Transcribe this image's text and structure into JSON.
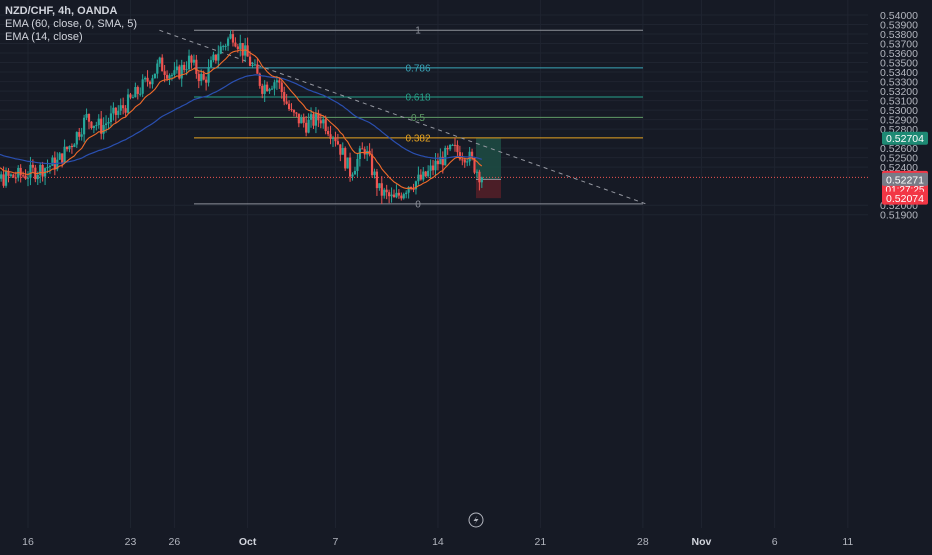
{
  "legend": {
    "symbol": "NZD/CHF, 4h, OANDA",
    "ema_long": "EMA (60, close, 0, SMA, 5)",
    "ema_short": "EMA (14, close)"
  },
  "colors": {
    "background": "#161a25",
    "up": "#26a69a",
    "down": "#ef5350",
    "ema_long": "#2a4fb0",
    "ema_short": "#f06a2a",
    "fib_1": "#8d919a",
    "fib_786": "#3aa6b9",
    "fib_618": "#27a38a",
    "fib_5": "#5f9a66",
    "fib_382": "#e6a321",
    "fib_0": "#8d919a",
    "price_line": "#ef5350",
    "target_zone": "#1d4a42",
    "stop_zone": "#4e1f27"
  },
  "price_axis": {
    "ticks": [
      "0.54000",
      "0.53900",
      "0.53800",
      "0.53700",
      "0.53600",
      "0.53500",
      "0.53400",
      "0.53300",
      "0.53200",
      "0.53100",
      "0.53000",
      "0.52900",
      "0.52800",
      "0.52600",
      "0.52500",
      "0.52400",
      "0.52000",
      "0.51900"
    ]
  },
  "price_labels": {
    "target": "0.52704",
    "current": "0.52293",
    "countdown": "01:27:25",
    "entry": "0.52271",
    "stop": "0.52074"
  },
  "time_axis": {
    "ticks": [
      "16",
      "23",
      "26",
      "Oct",
      "7",
      "14",
      "21",
      "28",
      "Nov",
      "6",
      "11"
    ]
  },
  "chart_data": {
    "type": "candlestick",
    "timeframe": "4h",
    "ylim": [
      0.5186,
      0.5408
    ],
    "grid": true,
    "fib_levels": [
      {
        "label": "1",
        "value": 0.5384
      },
      {
        "label": "0.786",
        "value": 0.53444
      },
      {
        "label": "0.618",
        "value": 0.53138
      },
      {
        "label": "0.5",
        "value": 0.52923
      },
      {
        "label": "0.382",
        "value": 0.52708
      },
      {
        "label": "0",
        "value": 0.52014
      }
    ],
    "trendline": [
      {
        "x": "Sep 26",
        "y": 0.5384
      },
      {
        "x": "Oct 28",
        "y": 0.52014
      }
    ],
    "position": {
      "target": 0.52704,
      "entry": 0.52271,
      "stop": 0.52074,
      "current": 0.52293
    },
    "ohlc_path": [
      {
        "date": "Sep 12",
        "price": 0.5262
      },
      {
        "date": "Sep 13",
        "price": 0.5238
      },
      {
        "date": "Sep 14",
        "price": 0.5227
      },
      {
        "date": "Sep 16",
        "price": 0.5233
      },
      {
        "date": "Sep 18",
        "price": 0.5245
      },
      {
        "date": "Sep 19",
        "price": 0.5266
      },
      {
        "date": "Sep 20",
        "price": 0.5292
      },
      {
        "date": "Sep 21",
        "price": 0.5282
      },
      {
        "date": "Sep 23",
        "price": 0.531
      },
      {
        "date": "Sep 24",
        "price": 0.5328
      },
      {
        "date": "Sep 25",
        "price": 0.5348
      },
      {
        "date": "Sep 26",
        "price": 0.5335
      },
      {
        "date": "Sep 27",
        "price": 0.5352
      },
      {
        "date": "Sep 28",
        "price": 0.533
      },
      {
        "date": "Sep 29",
        "price": 0.5362
      },
      {
        "date": "Sep 30",
        "price": 0.538
      },
      {
        "date": "Oct 1",
        "price": 0.5355
      },
      {
        "date": "Oct 2",
        "price": 0.5325
      },
      {
        "date": "Oct 3",
        "price": 0.5332
      },
      {
        "date": "Oct 4",
        "price": 0.5295
      },
      {
        "date": "Oct 5",
        "price": 0.5285
      },
      {
        "date": "Oct 6",
        "price": 0.5292
      },
      {
        "date": "Oct 7",
        "price": 0.5272
      },
      {
        "date": "Oct 8",
        "price": 0.5235
      },
      {
        "date": "Oct 9",
        "price": 0.526
      },
      {
        "date": "Oct 10",
        "price": 0.5215
      },
      {
        "date": "Oct 11",
        "price": 0.5205
      },
      {
        "date": "Oct 12",
        "price": 0.5222
      },
      {
        "date": "Oct 13",
        "price": 0.5228
      },
      {
        "date": "Oct 14",
        "price": 0.5245
      },
      {
        "date": "Oct 15",
        "price": 0.5258
      },
      {
        "date": "Oct 16",
        "price": 0.5253
      },
      {
        "date": "Oct 17",
        "price": 0.5229
      }
    ]
  }
}
